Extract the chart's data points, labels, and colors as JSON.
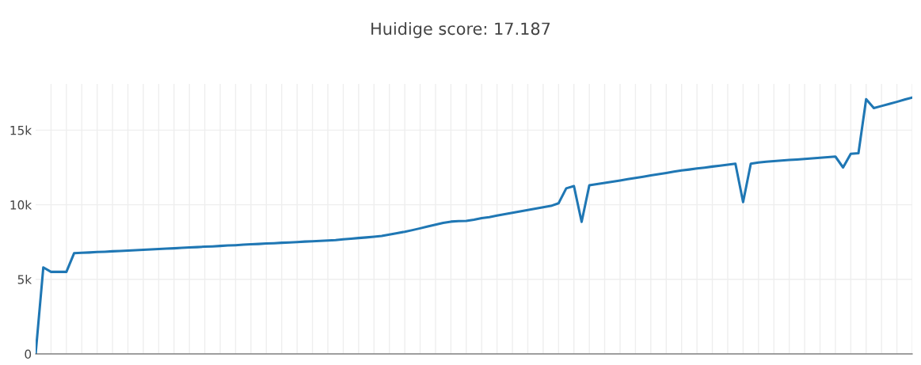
{
  "chart_data": {
    "type": "line",
    "title": "Huidige score: 17.187",
    "categories": [
      null,
      null,
      null,
      null,
      null,
      null,
      null,
      null,
      null,
      null,
      null,
      null,
      null,
      null,
      null,
      null,
      null,
      null,
      null,
      null,
      null,
      null,
      null,
      null,
      null,
      null,
      null,
      null,
      null,
      null,
      null,
      null,
      null,
      null,
      null,
      null,
      null,
      null,
      null,
      null,
      null,
      null,
      null,
      null,
      null,
      null,
      null,
      null,
      null,
      null,
      null,
      null,
      null,
      null,
      null,
      null,
      null,
      null,
      null,
      null,
      null,
      null,
      null,
      null,
      null,
      null,
      null,
      null,
      null,
      null,
      null,
      null,
      null,
      null,
      null,
      null,
      null,
      null,
      null,
      null,
      null,
      null,
      null,
      null,
      null,
      null,
      null,
      null,
      null,
      null,
      null,
      null,
      null,
      null,
      null,
      null,
      null,
      null,
      null,
      null,
      null,
      null,
      null,
      null,
      null,
      null,
      null,
      null,
      null,
      null,
      null,
      null,
      null,
      null,
      null
    ],
    "series": [
      {
        "color": "#1f77b4",
        "values": [
          0,
          5800,
          5500,
          5500,
          5500,
          6750,
          6780,
          6800,
          6830,
          6850,
          6880,
          6900,
          6930,
          6950,
          6980,
          7010,
          7030,
          7060,
          7080,
          7110,
          7140,
          7160,
          7190,
          7210,
          7240,
          7270,
          7290,
          7320,
          7350,
          7370,
          7400,
          7420,
          7450,
          7470,
          7500,
          7530,
          7550,
          7580,
          7600,
          7630,
          7680,
          7720,
          7770,
          7810,
          7860,
          7910,
          8000,
          8100,
          8190,
          8300,
          8420,
          8550,
          8670,
          8790,
          8870,
          8900,
          8920,
          9000,
          9100,
          9170,
          9270,
          9370,
          9460,
          9560,
          9650,
          9740,
          9830,
          9920,
          10100,
          11100,
          11250,
          8850,
          11300,
          11380,
          11460,
          11550,
          11630,
          11720,
          11800,
          11880,
          11970,
          12050,
          12130,
          12220,
          12300,
          12360,
          12430,
          12490,
          12560,
          12620,
          12690,
          12750,
          10180,
          12750,
          12830,
          12880,
          12920,
          12960,
          13000,
          13030,
          13070,
          13110,
          13150,
          13190,
          13230,
          12500,
          13420,
          13460,
          17080,
          16480,
          16620,
          16760,
          16900,
          17050,
          17190
        ]
      }
    ],
    "ylim": [
      0,
      18100
    ],
    "yticks": [
      0,
      {
        "value": 5000,
        "label": "5k"
      },
      {
        "value": 10000,
        "label": "10k"
      },
      {
        "value": 15000,
        "label": "15k"
      }
    ],
    "grid": true,
    "tick_labels": "y",
    "marker": "none",
    "line_style": "solid"
  }
}
